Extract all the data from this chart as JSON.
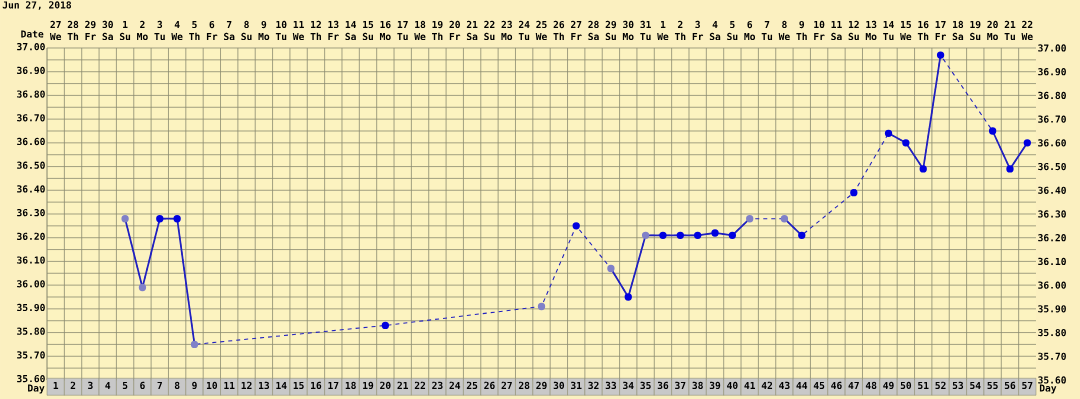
{
  "chart_data": {
    "type": "line",
    "title": "Jun 27, 2018",
    "xlabel": "Day",
    "x2label": "Date",
    "xlim": [
      0.5,
      57.5
    ],
    "xticks": [
      1,
      2,
      3,
      4,
      5,
      6,
      7,
      8,
      9,
      10,
      11,
      12,
      13,
      14,
      15,
      16,
      17,
      18,
      19,
      20,
      21,
      22,
      23,
      24,
      25,
      26,
      27,
      28,
      29,
      30,
      31,
      32,
      33,
      34,
      35,
      36,
      37,
      38,
      39,
      40,
      41,
      42,
      43,
      44,
      45,
      46,
      47,
      48,
      49,
      50,
      51,
      52,
      53,
      54,
      55,
      56,
      57
    ],
    "annotations": [
      "27",
      "28",
      "29",
      "30",
      "1",
      "2",
      "3",
      "4",
      "5",
      "6",
      "7",
      "8",
      "9",
      "10",
      "11",
      "12",
      "13",
      "14",
      "15",
      "16",
      "17",
      "18",
      "19",
      "20",
      "21",
      "22",
      "23",
      "24",
      "25",
      "26",
      "27",
      "28",
      "29",
      "30",
      "31",
      "1",
      "2",
      "3",
      "4",
      "5",
      "6",
      "7",
      "8",
      "9",
      "10",
      "11",
      "12",
      "13",
      "14",
      "15",
      "16",
      "17",
      "18",
      "19",
      "20",
      "21",
      "22",
      "We",
      "Th",
      "Fr",
      "Sa",
      "Su",
      "Mo",
      "Tu",
      "We",
      "Th",
      "Fr",
      "Sa",
      "Su",
      "Mo",
      "Tu",
      "We",
      "Th",
      "Fr",
      "Sa",
      "Su",
      "Mo",
      "Tu",
      "We",
      "Th",
      "Fr",
      "Sa",
      "Su",
      "Mo",
      "Tu",
      "We",
      "Th",
      "Fr",
      "Sa",
      "Su",
      "Mo",
      "Tu",
      "We",
      "Th",
      "Fr",
      "Sa",
      "Su",
      "Mo",
      "Tu",
      "We",
      "Th",
      "Fr",
      "Sa",
      "Su",
      "Mo",
      "Tu",
      "We",
      "Th",
      "Fr",
      "Sa",
      "Su",
      "Mo",
      "Tu",
      "We"
    ],
    "ylim": [
      35.6,
      37.0
    ],
    "yticks": [
      {
        "value": 35.6,
        "label": "35.60"
      },
      {
        "value": 35.7,
        "label": "35.70"
      },
      {
        "value": 35.8,
        "label": "35.80"
      },
      {
        "value": 35.9,
        "label": "35.90"
      },
      {
        "value": 36.0,
        "label": "36.00"
      },
      {
        "value": 36.1,
        "label": "36.10"
      },
      {
        "value": 36.2,
        "label": "36.20"
      },
      {
        "value": 36.3,
        "label": "36.30"
      },
      {
        "value": 36.4,
        "label": "36.40"
      },
      {
        "value": 36.5,
        "label": "36.50"
      },
      {
        "value": 36.6,
        "label": "36.60"
      },
      {
        "value": 36.7,
        "label": "36.70"
      },
      {
        "value": 36.8,
        "label": "36.80"
      },
      {
        "value": 36.9,
        "label": "36.90"
      },
      {
        "value": 37.0,
        "label": "37.00"
      }
    ],
    "y2lim": [
      35.6,
      37.0
    ],
    "y2ticks": [
      {
        "value": 35.6,
        "label": "35.60"
      },
      {
        "value": 35.7,
        "label": "35.70"
      },
      {
        "value": 35.8,
        "label": "35.80"
      },
      {
        "value": 35.9,
        "label": "35.90"
      },
      {
        "value": 36.0,
        "label": "36.00"
      },
      {
        "value": 36.1,
        "label": "36.10"
      },
      {
        "value": 36.2,
        "label": "36.20"
      },
      {
        "value": 36.3,
        "label": "36.30"
      },
      {
        "value": 36.4,
        "label": "36.40"
      },
      {
        "value": 36.5,
        "label": "36.50"
      },
      {
        "value": 36.6,
        "label": "36.60"
      },
      {
        "value": 36.7,
        "label": "36.70"
      },
      {
        "value": 36.8,
        "label": "36.80"
      },
      {
        "value": 36.9,
        "label": "36.90"
      },
      {
        "value": 37.0,
        "label": "37.00"
      }
    ],
    "grid": true,
    "series": [
      {
        "type": "line",
        "line_style": "dashed",
        "marker": "none",
        "color": "#2020c0",
        "x": [
          5,
          6,
          7,
          8,
          9,
          20,
          29,
          31,
          33,
          34,
          35,
          36,
          37,
          38,
          39,
          40,
          41,
          43,
          44,
          47,
          49,
          50,
          51,
          52,
          55,
          56,
          57
        ],
        "values": [
          36.28,
          35.99,
          36.28,
          36.28,
          35.75,
          35.83,
          35.91,
          36.25,
          36.07,
          35.95,
          36.21,
          36.21,
          36.21,
          36.21,
          36.22,
          36.21,
          36.28,
          36.28,
          36.21,
          36.39,
          36.64,
          36.6,
          36.49,
          36.97,
          36.65,
          36.49,
          36.6
        ]
      },
      {
        "type": "line",
        "line_style": "solid",
        "marker": "none",
        "color": "#2020c0",
        "x": [
          5,
          6,
          7,
          8,
          9,
          10,
          33,
          34,
          35,
          36,
          37,
          38,
          39,
          40,
          41,
          42,
          43,
          44,
          45,
          49,
          50,
          51,
          52,
          53,
          55,
          56,
          57
        ],
        "values": [
          36.28,
          35.99,
          36.28,
          36.28,
          35.75,
          null,
          36.07,
          35.95,
          36.21,
          36.21,
          36.21,
          36.21,
          36.22,
          36.21,
          36.28,
          null,
          36.28,
          36.21,
          null,
          36.64,
          36.6,
          36.49,
          36.97,
          null,
          36.65,
          36.49,
          36.6
        ]
      },
      {
        "type": "scatter",
        "marker": "circle",
        "color": "#0000e0",
        "x": [
          7,
          8,
          20,
          31,
          34,
          36,
          37,
          38,
          39,
          40,
          44,
          47,
          49,
          50,
          51,
          52,
          55,
          56,
          57
        ],
        "values": [
          36.28,
          36.28,
          35.83,
          36.25,
          35.95,
          36.21,
          36.21,
          36.21,
          36.22,
          36.21,
          36.21,
          36.39,
          36.64,
          36.6,
          36.49,
          36.97,
          36.65,
          36.49,
          36.6
        ]
      },
      {
        "type": "scatter",
        "marker": "circle",
        "color": "#8080c8",
        "x": [
          5,
          6,
          9,
          29,
          33,
          35,
          41,
          43
        ],
        "values": [
          36.28,
          35.99,
          35.75,
          35.91,
          36.07,
          36.21,
          36.28,
          36.28
        ]
      }
    ]
  }
}
